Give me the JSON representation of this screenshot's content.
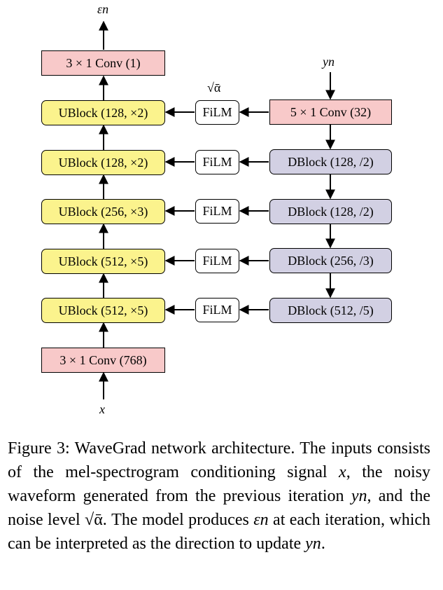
{
  "diagram": {
    "output_label": "εn",
    "yn_label": "yn",
    "x_label": "x",
    "alpha_label": "√ᾱ",
    "top_conv": "3 × 1 Conv (1)",
    "bottom_conv": "3 × 1 Conv (768)",
    "right_conv": "5 × 1 Conv (32)",
    "ublocks": [
      "UBlock (128, ×2)",
      "UBlock (128, ×2)",
      "UBlock (256, ×3)",
      "UBlock (512, ×5)",
      "UBlock (512, ×5)"
    ],
    "film_label": "FiLM",
    "dblocks": [
      "DBlock (128, /2)",
      "DBlock (128, /2)",
      "DBlock (256, /3)",
      "DBlock (512, /5)"
    ],
    "colors": {
      "conv": "#f8c9c9",
      "ublock": "#fbf38d",
      "dblock": "#d2d0e3",
      "film": "#ffffff"
    }
  },
  "caption": {
    "figure_label": "Figure 3:",
    "part1": "WaveGrad network architecture. The inputs consists of the mel-spectrogram conditioning signal",
    "x": "x",
    "part2": ", the noisy waveform generated from the previous iteration",
    "yn": "yn",
    "part3": ", and the noise level",
    "alpha": "√ᾱ",
    "part4": ". The model produces",
    "eps": "εn",
    "part5": "at each iteration, which can be interpreted as the direction to update",
    "yn2": "yn",
    "part6": "."
  }
}
